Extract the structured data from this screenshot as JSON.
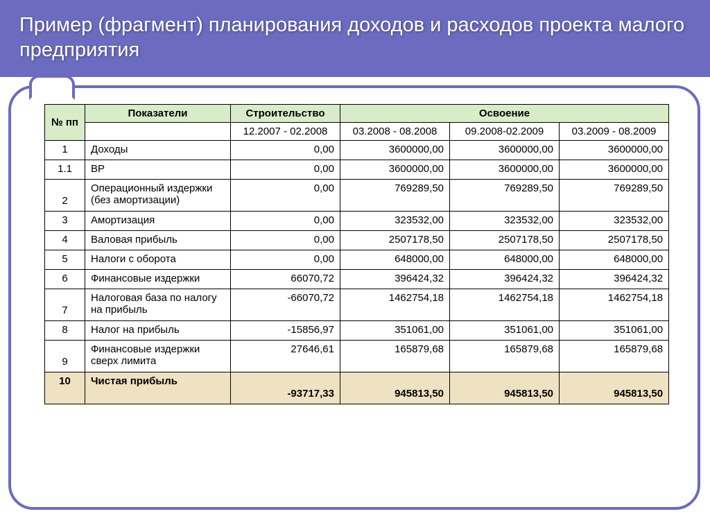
{
  "title": "Пример (фрагмент) планирования доходов и расходов проекта малого предприятия",
  "headers": {
    "num": "№ пп",
    "indicators": "Показатели",
    "construction": "Строительство",
    "development": "Освоение",
    "period1": "12.2007 - 02.2008",
    "period2": "03.2008 - 08.2008",
    "period3": "09.2008-02.2009",
    "period4": "03.2009 - 08.2009"
  },
  "rows": [
    {
      "n": "1",
      "label": "Доходы",
      "v": [
        "0,00",
        "3600000,00",
        "3600000,00",
        "3600000,00"
      ],
      "tall": false
    },
    {
      "n": "1.1",
      "label": "ВР",
      "v": [
        "0,00",
        "3600000,00",
        "3600000,00",
        "3600000,00"
      ],
      "tall": false
    },
    {
      "n": "2",
      "label": "Операционный издержки (без амортизации)",
      "v": [
        "0,00",
        "769289,50",
        "769289,50",
        "769289,50"
      ],
      "tall": true
    },
    {
      "n": "3",
      "label": "Амортизация",
      "v": [
        "0,00",
        "323532,00",
        "323532,00",
        "323532,00"
      ],
      "tall": false
    },
    {
      "n": "4",
      "label": "Валовая прибыль",
      "v": [
        "0,00",
        "2507178,50",
        "2507178,50",
        "2507178,50"
      ],
      "tall": false
    },
    {
      "n": "5",
      "label": "Налоги с оборота",
      "v": [
        "0,00",
        "648000,00",
        "648000,00",
        "648000,00"
      ],
      "tall": false
    },
    {
      "n": "6",
      "label": "Финансовые издержки",
      "v": [
        "66070,72",
        "396424,32",
        "396424,32",
        "396424,32"
      ],
      "tall": false
    },
    {
      "n": "7",
      "label": "Налоговая база по налогу на прибыль",
      "v": [
        "-66070,72",
        "1462754,18",
        "1462754,18",
        "1462754,18"
      ],
      "tall": true
    },
    {
      "n": "8",
      "label": "Налог на прибыль",
      "v": [
        "-15856,97",
        "351061,00",
        "351061,00",
        "351061,00"
      ],
      "tall": false
    },
    {
      "n": "9",
      "label": "Финансовые издержки сверх лимита",
      "v": [
        "27646,61",
        "165879,68",
        "165879,68",
        "165879,68"
      ],
      "tall": true
    }
  ],
  "total": {
    "n": "10",
    "label": "Чистая прибыль",
    "v": [
      "-93717,33",
      "945813,50",
      "945813,50",
      "945813,50"
    ]
  },
  "colors": {
    "title_bg": "#6b6bc0",
    "title_fg": "#ffffff",
    "header_bg": "#d8ecc7",
    "total_bg": "#efe2c2",
    "border": "#000000"
  }
}
